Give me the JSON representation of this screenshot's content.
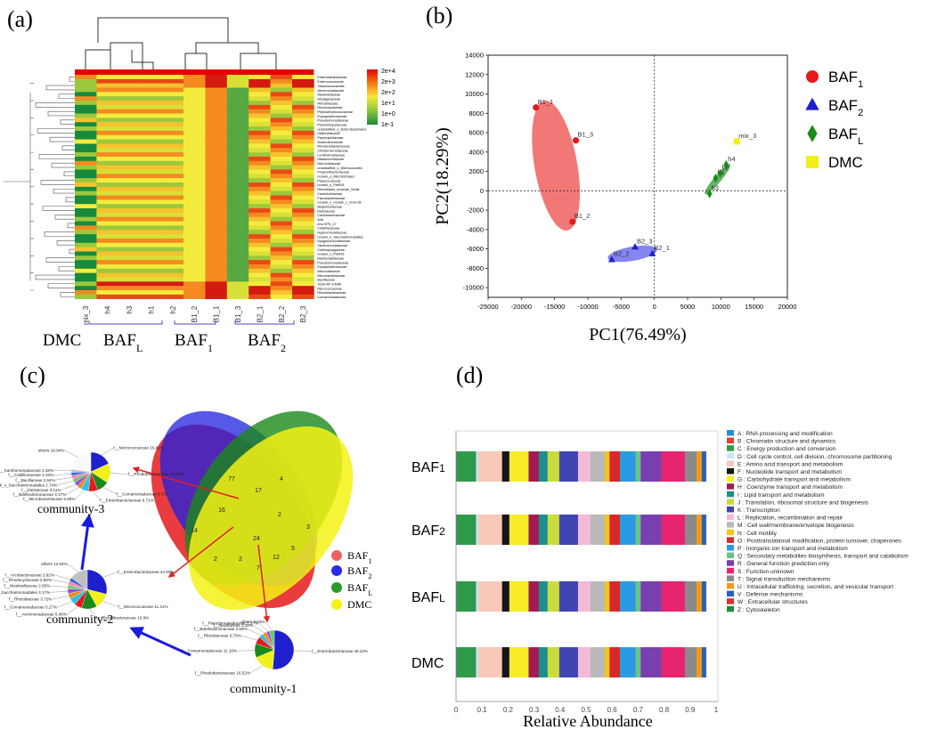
{
  "panels": {
    "a": "(a)",
    "b": "(b)",
    "c": "(c)",
    "d": "(d)"
  },
  "colors": {
    "baf1": "#e41a1c",
    "baf2": "#1f1fd0",
    "bafl": "#1a8a1a",
    "dmc": "#f2ef1a",
    "ellipse_baf1": "#f06060",
    "ellipse_baf2": "#6f6ff0",
    "ellipse_bafl": "#3aa03a"
  },
  "chart_data": [
    {
      "type": "heatmap",
      "panel": "a",
      "samples": [
        "mix_3",
        "h4",
        "h3",
        "h1",
        "h2",
        "B1_2",
        "B1_1",
        "B1_3",
        "B2_1",
        "B2_2",
        "B2_3"
      ],
      "group_labels": [
        {
          "main": "DMC",
          "sub": ""
        },
        {
          "main": "BAF",
          "sub": "L"
        },
        {
          "main": "BAF",
          "sub": "1"
        },
        {
          "main": "BAF",
          "sub": "2"
        }
      ],
      "rows": [
        "Enterobacteriaceae",
        "Enterococcaceae",
        "Streptococcaceae",
        "Aeromonadaceae",
        "Weeksellaceae",
        "Alcaligenaceae",
        "Rhizobiaceae",
        "Rhodocyclaceae",
        "Peptostreptococcaceae",
        "Erysipelotrichaceae",
        "Pseudomonadaceae",
        "Planctomycetaceae",
        "unclassified_o_Enterobacterales",
        "Veillonellaceae",
        "Peptoniphilaceae",
        "Anaerolineaceae",
        "Rhodanobacteraceae",
        "Christensenellaceae",
        "Lentimicrobiaceae",
        "Nakamurellaceae",
        "Microscillaceae",
        "unclassified_o_Micrococcales",
        "Propionibacteriaceae",
        "norank_o_Microtrichales",
        "Paracoccaceae",
        "norank_o_PeM15",
        "Rhizobiales_Incertae_Sedis",
        "Caminicellaceae",
        "Flavobacteriaceae",
        "norank_o_norank_c_Sum-28",
        "Beijerinckiaceae",
        "Dietziaceae",
        "Caulobacteraceae",
        "A4b",
        "env.OPS_17",
        "Caldilineaceae",
        "Hyphomonadaceae",
        "norank_o_Saccharimonadales",
        "Dysgonomonadaceae",
        "Xanthomonadaceae",
        "Chitinophagaceae",
        "norank_o_PeM15",
        "Blastocatellaceae",
        "Pseudomonadaceae",
        "Erysipelotrichaceae",
        "Microcellaceae",
        "Microbacteriaceae",
        "Bacillaceae",
        "JG30-KF-CM45",
        "Micrococcaceae",
        "Rhodobacteraceae",
        "Comamonadaceae"
      ],
      "scale_labels": [
        "2e+4",
        "2e+3",
        "2e+2",
        "1e+1",
        "1e+0",
        "1e-1"
      ]
    },
    {
      "type": "scatter",
      "panel": "b",
      "title": "",
      "xlabel": "PC1(76.49%)",
      "ylabel": "PC2(18.29%)",
      "xlim": [
        -25000,
        20000
      ],
      "ylim": [
        -11000,
        14000
      ],
      "xticks": [
        -25000,
        -20000,
        -15000,
        -10000,
        -5000,
        0,
        5000,
        10000,
        15000,
        20000
      ],
      "yticks": [
        14000,
        12000,
        10000,
        8000,
        6000,
        4000,
        2000,
        0,
        -2000,
        -4000,
        -6000,
        -8000,
        -10000
      ],
      "series": [
        {
          "name": "BAF",
          "sub": "1",
          "marker": "circle",
          "points": [
            {
              "label": "B1_1",
              "x": -17800,
              "y": 8600
            },
            {
              "label": "B1_3",
              "x": -11800,
              "y": 5200
            },
            {
              "label": "B1_2",
              "x": -12300,
              "y": -3200
            }
          ]
        },
        {
          "name": "BAF",
          "sub": "2",
          "marker": "triangle",
          "points": [
            {
              "label": "B2_3",
              "x": -2900,
              "y": -5800
            },
            {
              "label": "B2_2",
              "x": -6400,
              "y": -7100
            },
            {
              "label": "B2_1",
              "x": -300,
              "y": -6500
            }
          ]
        },
        {
          "name": "BAF",
          "sub": "L",
          "marker": "diamond",
          "points": [
            {
              "label": "h3",
              "x": 8300,
              "y": -300
            },
            {
              "label": "h1",
              "x": 9200,
              "y": 1300
            },
            {
              "label": "h2",
              "x": 9900,
              "y": 1800
            },
            {
              "label": "h4",
              "x": 10800,
              "y": 2700
            }
          ]
        },
        {
          "name": "DMC",
          "sub": "",
          "marker": "square",
          "points": [
            {
              "label": "mix_3",
              "x": 12400,
              "y": 5100
            }
          ]
        }
      ]
    },
    {
      "type": "pie",
      "panel": "c",
      "venn_sets": [
        {
          "name": "BAF",
          "sub": "1"
        },
        {
          "name": "BAF",
          "sub": "2"
        },
        {
          "name": "BAF",
          "sub": "L"
        },
        {
          "name": "DMC",
          "sub": ""
        }
      ],
      "venn_counts": [
        "77",
        "4",
        "17",
        "14",
        "3",
        "16",
        "2",
        "5",
        "2",
        "2",
        "24",
        "12",
        "7"
      ],
      "communities": [
        {
          "name": "community-3",
          "slices": [
            {
              "label": "f__Micrococcaceae 15.82%",
              "value": 15.82
            },
            {
              "label": "f__Rhodobacteraceae 14.03%",
              "value": 14.03
            },
            {
              "label": "f__Comamonadaceae 8.73%",
              "value": 8.73
            },
            {
              "label": "f__Enterobacteriaceae 6.71%",
              "value": 6.71
            },
            {
              "label": "f__Microbacteriaceae 5.69%",
              "value": 5.69
            },
            {
              "label": "f__Bdellovibrionaceae 3.17%",
              "value": 3.17
            },
            {
              "label": "f__Dietziaceae 3.11%",
              "value": 3.11
            },
            {
              "label": "unk_o_Saccharimonadales 2.74%",
              "value": 2.74
            },
            {
              "label": "f__Bacillaceae 2.64%",
              "value": 2.64
            },
            {
              "label": "f__Caldilineaceae 2.33%",
              "value": 2.33
            },
            {
              "label": "f__Xanthomonadaceae 2.28%",
              "value": 2.28
            },
            {
              "label": "others 19.94%",
              "value": 19.94
            }
          ]
        },
        {
          "name": "community-2",
          "slices": [
            {
              "label": "f__Enterobacteriaceae 24.90%",
              "value": 24.9
            },
            {
              "label": "f__Micrococcaceae 11.21%",
              "value": 11.21
            },
            {
              "label": "f__Rhodobacteraceae 10.9%",
              "value": 10.9
            },
            {
              "label": "f__Aeromonadaceae 5.46%",
              "value": 5.46
            },
            {
              "label": "f__Comamonadaceae 5.27%",
              "value": 5.27
            },
            {
              "label": "f__Rhizobiaceae 3.72%",
              "value": 3.72
            },
            {
              "label": "norank_o_Saccharimonadales 3.17%",
              "value": 3.17
            },
            {
              "label": "f__Weeksellaceae 2.95%",
              "value": 2.95
            },
            {
              "label": "f__Rhodocyclaceae 2.83%",
              "value": 2.83
            },
            {
              "label": "f__Arcobacteraceae 2.62%",
              "value": 2.62
            },
            {
              "label": "others 12.92%",
              "value": 12.92
            }
          ]
        },
        {
          "name": "community-1",
          "slices": [
            {
              "label": "f__Enterobacteriaceae 49.23%",
              "value": 49.23
            },
            {
              "label": "f__Rhodobacteraceae 16.52%",
              "value": 16.52
            },
            {
              "label": "f__Comamonadaceae 11.16%",
              "value": 11.16
            },
            {
              "label": "f__Rhizobiaceae 5.79%",
              "value": 5.79
            },
            {
              "label": "f__Bdellovibrionaceae 3.50%",
              "value": 3.5
            },
            {
              "label": "f__Bacillaceae 3.32%",
              "value": 3.32
            },
            {
              "label": "f__Pseudomonadaceae 2.37%",
              "value": 2.37
            },
            {
              "label": "others 3.94%",
              "value": 3.94
            }
          ]
        }
      ]
    },
    {
      "type": "bar",
      "panel": "d",
      "orientation": "horizontal",
      "stacked": true,
      "xlabel": "Relative Abundance",
      "xlim": [
        0,
        1
      ],
      "xticks": [
        "0",
        "0.1",
        "0.2",
        "0.3",
        "0.4",
        "0.5",
        "0.6",
        "0.7",
        "0.8",
        "0.9",
        "1"
      ],
      "categories": [
        "BAF1",
        "BAF2",
        "BAFL",
        "DMC"
      ],
      "category_labels": [
        {
          "main": "BAF",
          "sub": "1"
        },
        {
          "main": "BAF",
          "sub": "2"
        },
        {
          "main": "BAF",
          "sub": "L"
        },
        {
          "main": "DMC",
          "sub": ""
        }
      ],
      "series": [
        {
          "code": "A",
          "name": "A : RNA processing and modification",
          "color": "#1f8fd6",
          "values": [
            0.001,
            0.001,
            0.001,
            0.001
          ]
        },
        {
          "code": "B",
          "name": "B : Chromatin structure and dynamics",
          "color": "#e43d2f",
          "values": [
            0.001,
            0.001,
            0.001,
            0.001
          ]
        },
        {
          "code": "C",
          "name": "C : Energy production and conversion",
          "color": "#2e9a4a",
          "values": [
            0.075,
            0.075,
            0.075,
            0.075
          ]
        },
        {
          "code": "D",
          "name": "D : Cell cycle control, cell division, chromosome partitioning",
          "color": "#c8e8f8",
          "values": [
            0.008,
            0.008,
            0.008,
            0.008
          ]
        },
        {
          "code": "E",
          "name": "E : Amino acid transport and metabolism",
          "color": "#f8c8b8",
          "values": [
            0.092,
            0.092,
            0.092,
            0.092
          ]
        },
        {
          "code": "F",
          "name": "F : Nucleotide transport and metabolism",
          "color": "#161616",
          "values": [
            0.028,
            0.028,
            0.028,
            0.028
          ]
        },
        {
          "code": "G",
          "name": "G : Carbohydrate transport and metabolism",
          "color": "#f7ec25",
          "values": [
            0.074,
            0.074,
            0.074,
            0.074
          ]
        },
        {
          "code": "H",
          "name": "H : Coenzyme transport and metabolism",
          "color": "#a01d54",
          "values": [
            0.04,
            0.04,
            0.04,
            0.04
          ]
        },
        {
          "code": "I",
          "name": "I : Lipid transport and metabolism",
          "color": "#1b8f8f",
          "values": [
            0.033,
            0.033,
            0.033,
            0.033
          ]
        },
        {
          "code": "J",
          "name": "J : Translation, ribosomal structure and biogenesis",
          "color": "#c9dc3a",
          "values": [
            0.045,
            0.045,
            0.045,
            0.045
          ]
        },
        {
          "code": "K",
          "name": "K : Transcription",
          "color": "#3f46b4",
          "values": [
            0.072,
            0.072,
            0.072,
            0.072
          ]
        },
        {
          "code": "L",
          "name": "L : Replication, recombination and repair",
          "color": "#f4b9d5",
          "values": [
            0.048,
            0.048,
            0.048,
            0.048
          ]
        },
        {
          "code": "M",
          "name": "M : Cell wall/membrane/envelope biogenesis",
          "color": "#b9b9b9",
          "values": [
            0.055,
            0.055,
            0.055,
            0.055
          ]
        },
        {
          "code": "N",
          "name": "N : Cell motility",
          "color": "#f5c518",
          "values": [
            0.018,
            0.018,
            0.018,
            0.018
          ]
        },
        {
          "code": "O",
          "name": "O : Posttranslational modification, protein turnover, chaperones",
          "color": "#d62a2a",
          "values": [
            0.04,
            0.04,
            0.04,
            0.04
          ]
        },
        {
          "code": "P",
          "name": "P : Inorganic ion transport and metabolism",
          "color": "#2c9ae0",
          "values": [
            0.06,
            0.06,
            0.06,
            0.06
          ]
        },
        {
          "code": "Q",
          "name": "Q : Secondary metabolites biosynthesis, transport and catabolism",
          "color": "#6bc28a",
          "values": [
            0.02,
            0.02,
            0.02,
            0.02
          ]
        },
        {
          "code": "R",
          "name": "R : General function prediction only",
          "color": "#7a3fae",
          "values": [
            0.08,
            0.08,
            0.08,
            0.08
          ]
        },
        {
          "code": "S",
          "name": "S : Function unknown",
          "color": "#e8246e",
          "values": [
            0.09,
            0.09,
            0.09,
            0.09
          ]
        },
        {
          "code": "T",
          "name": "T : Signal transduction mechanisms",
          "color": "#8a8a8a",
          "values": [
            0.045,
            0.045,
            0.045,
            0.045
          ]
        },
        {
          "code": "U",
          "name": "U : Intracellular trafficking, secretion, and vesicular transport",
          "color": "#f09a1b",
          "values": [
            0.02,
            0.02,
            0.02,
            0.02
          ]
        },
        {
          "code": "V",
          "name": "V : Defense mechanisms",
          "color": "#2364c6",
          "values": [
            0.015,
            0.015,
            0.015,
            0.015
          ]
        },
        {
          "code": "W",
          "name": "W : Extracellular structures",
          "color": "#e03030",
          "values": [
            0.001,
            0.001,
            0.001,
            0.001
          ]
        },
        {
          "code": "Z",
          "name": "Z : Cytoskeleton",
          "color": "#238a3f",
          "values": [
            0.001,
            0.001,
            0.001,
            0.001
          ]
        }
      ]
    }
  ]
}
